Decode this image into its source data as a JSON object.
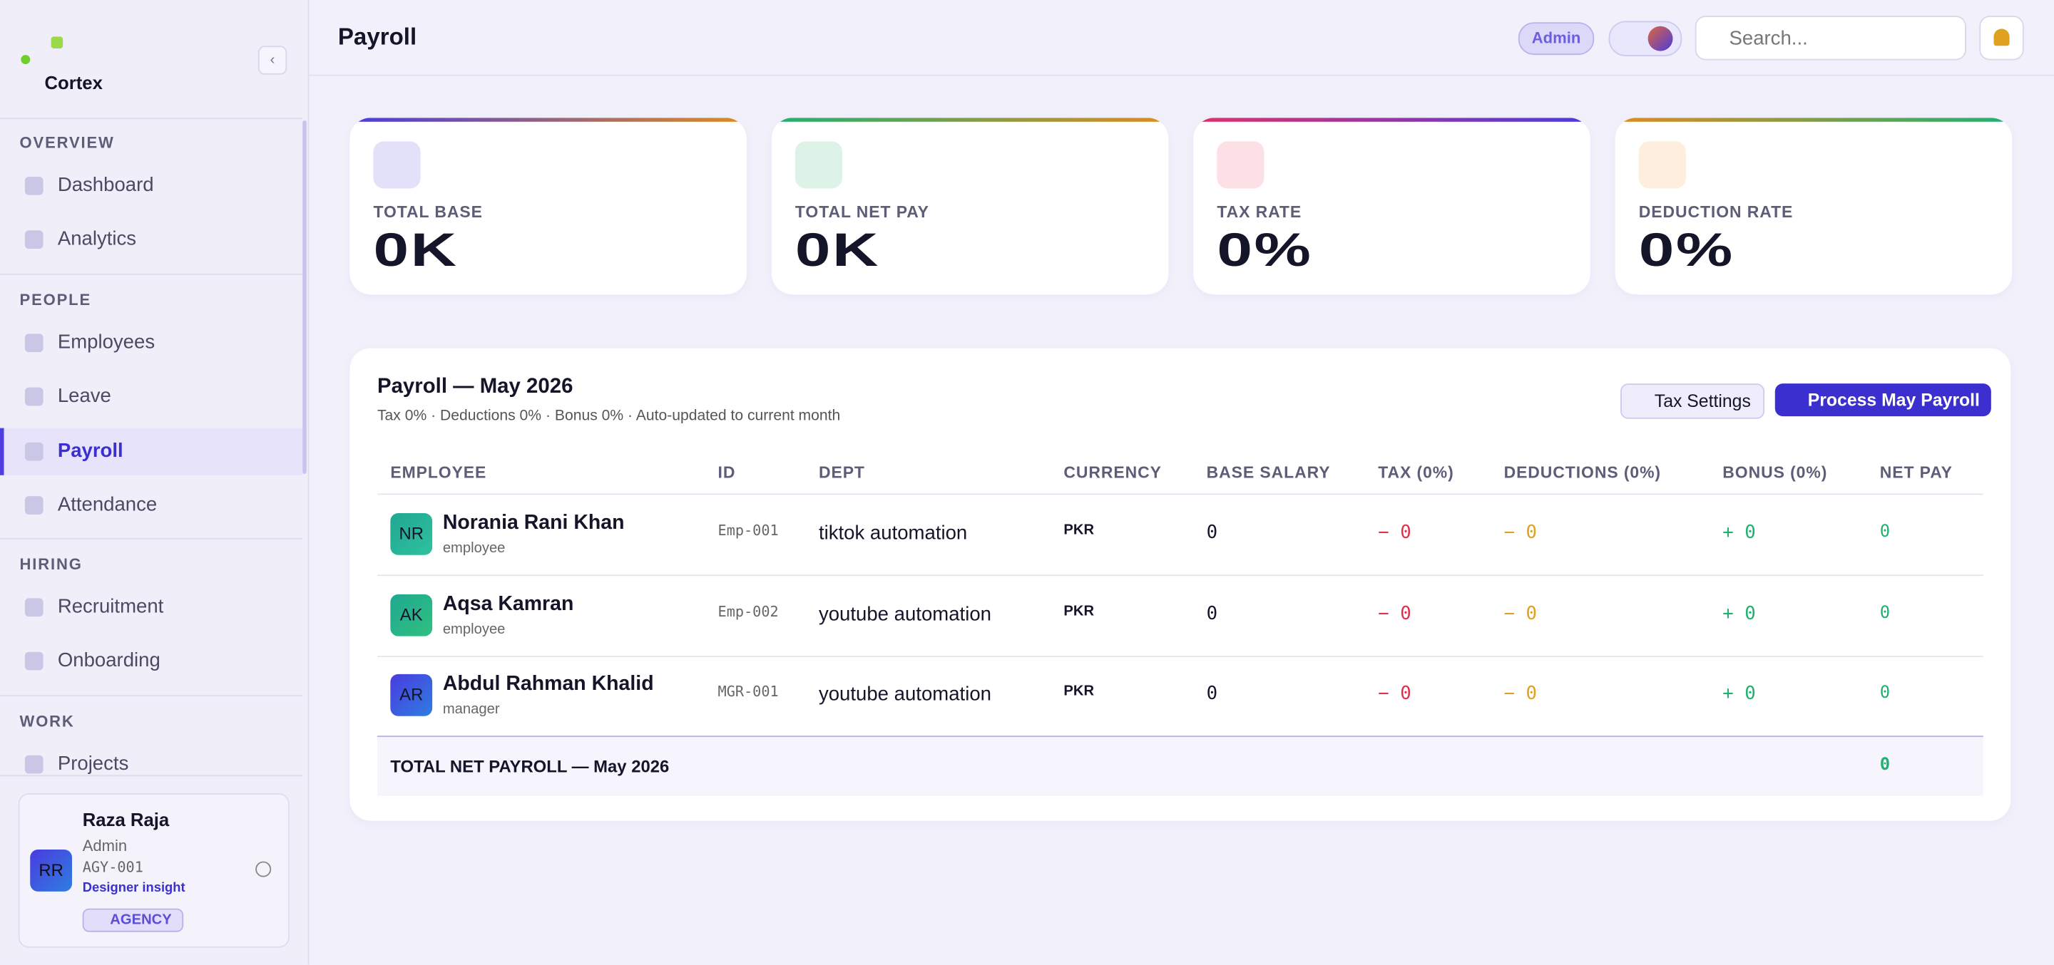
{
  "sidebar": {
    "brand": "Cortex",
    "sections": [
      {
        "title": "OVERVIEW",
        "items": [
          "Dashboard",
          "Analytics"
        ]
      },
      {
        "title": "PEOPLE",
        "items": [
          "Employees",
          "Leave",
          "Payroll",
          "Attendance"
        ]
      },
      {
        "title": "HIRING",
        "items": [
          "Recruitment",
          "Onboarding"
        ]
      },
      {
        "title": "WORK",
        "items": [
          "Projects"
        ]
      }
    ]
  },
  "user": {
    "initials": "RR",
    "name": "Raza Raja",
    "role": "Admin",
    "id": "AGY-001",
    "insight": "Designer insight",
    "badge": "AGENCY"
  },
  "header": {
    "title": "Payroll",
    "role_badge": "Admin",
    "search_placeholder": "Search..."
  },
  "stats": [
    {
      "label": "TOTAL BASE",
      "value": "0K"
    },
    {
      "label": "TOTAL NET PAY",
      "value": "0K"
    },
    {
      "label": "TAX RATE",
      "value": "0%"
    },
    {
      "label": "DEDUCTION RATE",
      "value": "0%"
    }
  ],
  "table": {
    "title": "Payroll — May 2026",
    "subtitle": "Tax 0% · Deductions 0% · Bonus 0% · Auto-updated to current month",
    "buttons": [
      "Tax Settings",
      "Process May Payroll"
    ],
    "columns": [
      "EMPLOYEE",
      "ID",
      "DEPT",
      "CURRENCY",
      "BASE SALARY",
      "TAX (0%)",
      "DEDUCTIONS (0%)",
      "BONUS (0%)",
      "NET PAY"
    ],
    "rows": [
      {
        "initials": "NR",
        "name": "Norania Rani Khan",
        "role": "employee",
        "id": "Emp-001",
        "dept": "tiktok automation",
        "currency": "PKR",
        "base": "0",
        "tax": "− 0",
        "deductions": "− 0",
        "bonus": "+ 0",
        "net": "0"
      },
      {
        "initials": "AK",
        "name": "Aqsa Kamran",
        "role": "employee",
        "id": "Emp-002",
        "dept": "youtube automation",
        "currency": "PKR",
        "base": "0",
        "tax": "− 0",
        "deductions": "− 0",
        "bonus": "+ 0",
        "net": "0"
      },
      {
        "initials": "AR",
        "name": "Abdul Rahman Khalid",
        "role": "manager",
        "id": "MGR-001",
        "dept": "youtube automation",
        "currency": "PKR",
        "base": "0",
        "tax": "− 0",
        "deductions": "− 0",
        "bonus": "+ 0",
        "net": "0"
      }
    ],
    "total_label": "TOTAL NET PAYROLL — May 2026",
    "total_value": "0"
  }
}
